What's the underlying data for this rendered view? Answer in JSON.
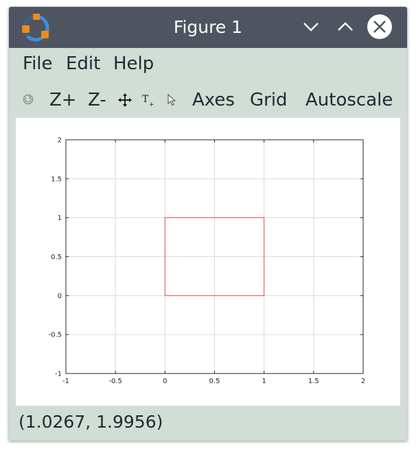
{
  "window": {
    "title": "Figure 1",
    "icons": {
      "logo": "octave-logo-icon",
      "minimize": "chevron-down-icon",
      "maximize": "chevron-up-icon",
      "close": "close-icon"
    }
  },
  "menu": {
    "items": [
      {
        "label": "File"
      },
      {
        "label": "Edit"
      },
      {
        "label": "Help"
      }
    ]
  },
  "toolbar": {
    "rotate_icon": "rotate-icon",
    "zoom_in_label": "Z+",
    "zoom_out_label": "Z-",
    "pan_icon": "pan-move-icon",
    "text_icon": "insert-text-icon",
    "select_icon": "select-pointer-icon",
    "axes_label": "Axes",
    "grid_label": "Grid",
    "autoscale_label": "Autoscale"
  },
  "chart_data": {
    "type": "line",
    "title": "",
    "xlabel": "",
    "ylabel": "",
    "xlim": [
      -1,
      2
    ],
    "ylim": [
      -1,
      2
    ],
    "xticks": [
      -1,
      -0.5,
      0,
      0.5,
      1,
      1.5,
      2
    ],
    "xtick_labels": [
      "-1",
      "-0.5",
      "0",
      "0.5",
      "1",
      "1.5",
      "2"
    ],
    "yticks": [
      -1,
      -0.5,
      0,
      0.5,
      1,
      1.5,
      2
    ],
    "ytick_labels": [
      "-1",
      "-0.5",
      "0",
      "0.5",
      "1",
      "1.5",
      "2"
    ],
    "grid": true,
    "series": [
      {
        "color": "#e05252",
        "x": [
          0,
          1,
          1,
          0,
          0
        ],
        "y": [
          0,
          0,
          1,
          1,
          0
        ]
      }
    ]
  },
  "status": {
    "coordinates": "(1.0267, 1.9956)"
  }
}
